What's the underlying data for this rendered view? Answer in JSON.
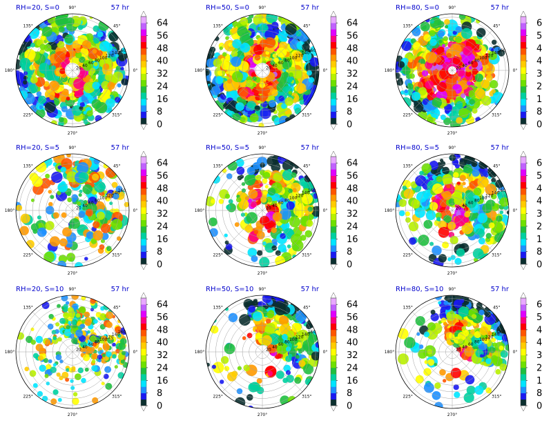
{
  "chart_data": {
    "type": "polar-heatmap",
    "grid": "3x3",
    "time_label": "57 hr",
    "angle_ticks": [
      "0°",
      "45°",
      "90°",
      "135°",
      "180°",
      "225°",
      "270°",
      "315°"
    ],
    "radial_ticks": [
      20,
      40,
      60,
      80,
      100,
      120,
      140,
      160
    ],
    "colorbar": {
      "ticks": [
        0,
        8,
        16,
        24,
        32,
        40,
        48,
        56,
        64
      ],
      "levels": [
        0,
        4,
        8,
        12,
        16,
        20,
        24,
        28,
        32,
        36,
        40,
        44,
        48,
        52,
        56,
        60,
        64,
        68
      ],
      "colors": [
        "#0b2f2f",
        "#1a1af0",
        "#1e90ff",
        "#00e5ff",
        "#00d0a0",
        "#1fbf3f",
        "#6ee000",
        "#b8f000",
        "#ffff00",
        "#ffcc00",
        "#ff9900",
        "#ff5500",
        "#ff0000",
        "#ff0080",
        "#e000ff",
        "#c060ff",
        "#e8a8ff"
      ],
      "extend": "both"
    },
    "panels": [
      {
        "title": "RH=20, S=0",
        "rh": 20,
        "shear": 0
      },
      {
        "title": "RH=50, S=0",
        "rh": 50,
        "shear": 0
      },
      {
        "title": "RH=80, S=0",
        "rh": 80,
        "shear": 0
      },
      {
        "title": "RH=20, S=5",
        "rh": 20,
        "shear": 5
      },
      {
        "title": "RH=50, S=5",
        "rh": 50,
        "shear": 5
      },
      {
        "title": "RH=80, S=5",
        "rh": 80,
        "shear": 5
      },
      {
        "title": "RH=20, S=10",
        "rh": 20,
        "shear": 10
      },
      {
        "title": "RH=50, S=10",
        "rh": 50,
        "shear": 10
      },
      {
        "title": "RH=80, S=10",
        "rh": 80,
        "shear": 10
      }
    ]
  }
}
